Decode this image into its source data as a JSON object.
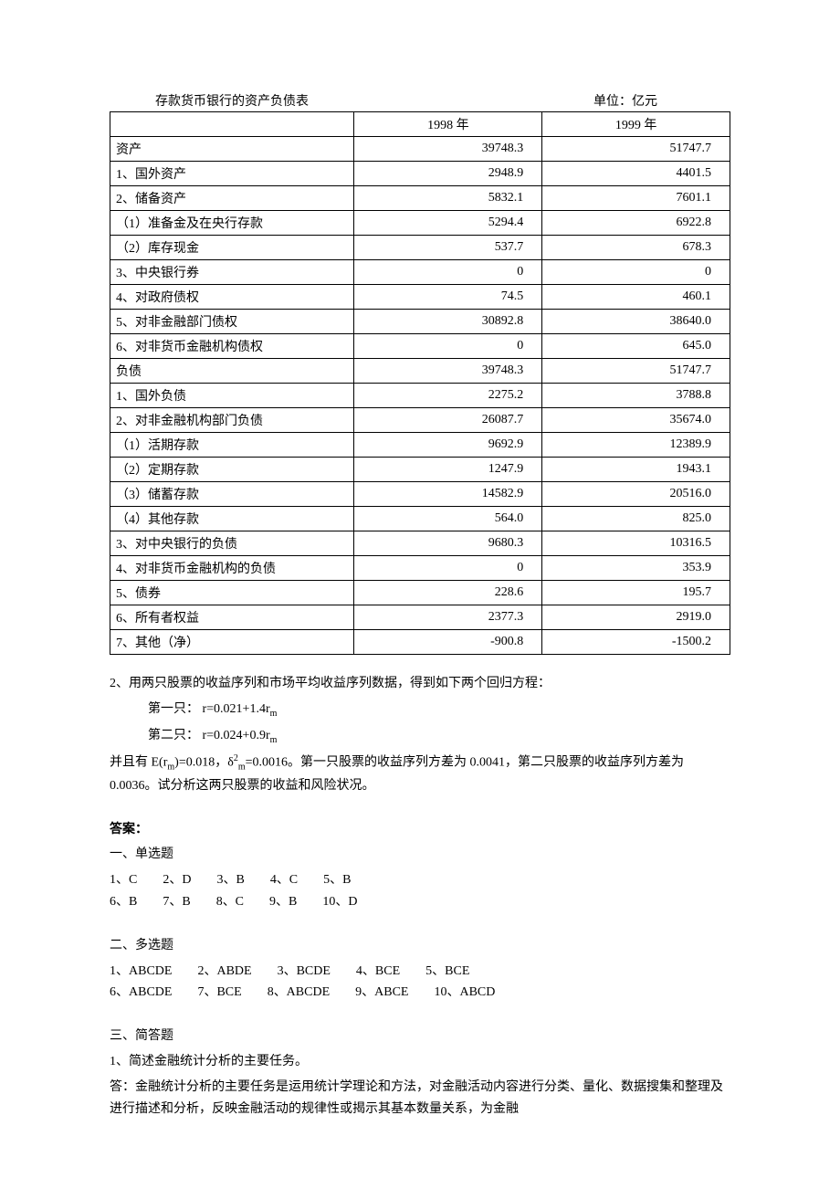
{
  "table": {
    "title": "存款货币银行的资产负债表",
    "unit": "单位：亿元",
    "header_col1": "1998 年",
    "header_col2": "1999 年",
    "rows": [
      {
        "label": "资产",
        "v1": "39748.3",
        "v2": "51747.7"
      },
      {
        "label": "1、国外资产",
        "v1": "2948.9",
        "v2": "4401.5"
      },
      {
        "label": "2、储备资产",
        "v1": "5832.1",
        "v2": "7601.1"
      },
      {
        "label": "（1）准备金及在央行存款",
        "v1": "5294.4",
        "v2": "6922.8"
      },
      {
        "label": "（2）库存现金",
        "v1": "537.7",
        "v2": "678.3"
      },
      {
        "label": "3、中央银行券",
        "v1": "0",
        "v2": "0"
      },
      {
        "label": "4、对政府债权",
        "v1": "74.5",
        "v2": "460.1"
      },
      {
        "label": "5、对非金融部门债权",
        "v1": "30892.8",
        "v2": "38640.0"
      },
      {
        "label": "6、对非货币金融机构债权",
        "v1": "0",
        "v2": "645.0"
      },
      {
        "label": "负债",
        "v1": "39748.3",
        "v2": "51747.7"
      },
      {
        "label": "1、国外负债",
        "v1": "2275.2",
        "v2": "3788.8"
      },
      {
        "label": "2、对非金融机构部门负债",
        "v1": "26087.7",
        "v2": "35674.0"
      },
      {
        "label": "（1）活期存款",
        "v1": "9692.9",
        "v2": "12389.9"
      },
      {
        "label": "（2）定期存款",
        "v1": "1247.9",
        "v2": "1943.1"
      },
      {
        "label": "（3）储蓄存款",
        "v1": "14582.9",
        "v2": "20516.0"
      },
      {
        "label": "（4）其他存款",
        "v1": "564.0",
        "v2": "825.0"
      },
      {
        "label": "3、对中央银行的负债",
        "v1": "9680.3",
        "v2": "10316.5"
      },
      {
        "label": "4、对非货币金融机构的负债",
        "v1": "0",
        "v2": "353.9"
      },
      {
        "label": "5、债券",
        "v1": "228.6",
        "v2": "195.7"
      },
      {
        "label": "6、所有者权益",
        "v1": "2377.3",
        "v2": "2919.0"
      },
      {
        "label": "7、其他（净）",
        "v1": "-900.8",
        "v2": "-1500.2"
      }
    ]
  },
  "q2": {
    "intro": "2、用两只股票的收益序列和市场平均收益序列数据，得到如下两个回归方程：",
    "eq1_label": "第一只：",
    "eq1": "r=0.021+1.4r",
    "eq2_label": "第二只：",
    "eq2": "r=0.024+0.9r",
    "para": "并且有 E(r",
    "para2": ")=0.018，δ",
    "para3": "=0.0016。第一只股票的收益序列方差为 0.0041，第二只股票的收益序列方差为 0.0036。试分析这两只股票的收益和风险状况。"
  },
  "answers": {
    "title": "答案：",
    "s1_title": "一、单选题",
    "s1": {
      "row1": [
        "1、C",
        "2、D",
        "3、B",
        "4、C",
        "5、B"
      ],
      "row2": [
        "6、B",
        "7、B",
        "8、C",
        "9、B",
        "10、D"
      ]
    },
    "s2_title": "二、多选题",
    "s2": {
      "row1": [
        "1、ABCDE",
        "2、ABDE",
        "3、BCDE",
        "4、BCE",
        "5、BCE"
      ],
      "row2": [
        "6、ABCDE",
        "7、BCE",
        "8、ABCDE",
        "9、ABCE",
        "10、ABCD"
      ]
    },
    "s3_title": "三、简答题",
    "s3_q1": "1、简述金融统计分析的主要任务。",
    "s3_a1": "答：金融统计分析的主要任务是运用统计学理论和方法，对金融活动内容进行分类、量化、数据搜集和整理及进行描述和分析，反映金融活动的规律性或揭示其基本数量关系，为金融"
  }
}
